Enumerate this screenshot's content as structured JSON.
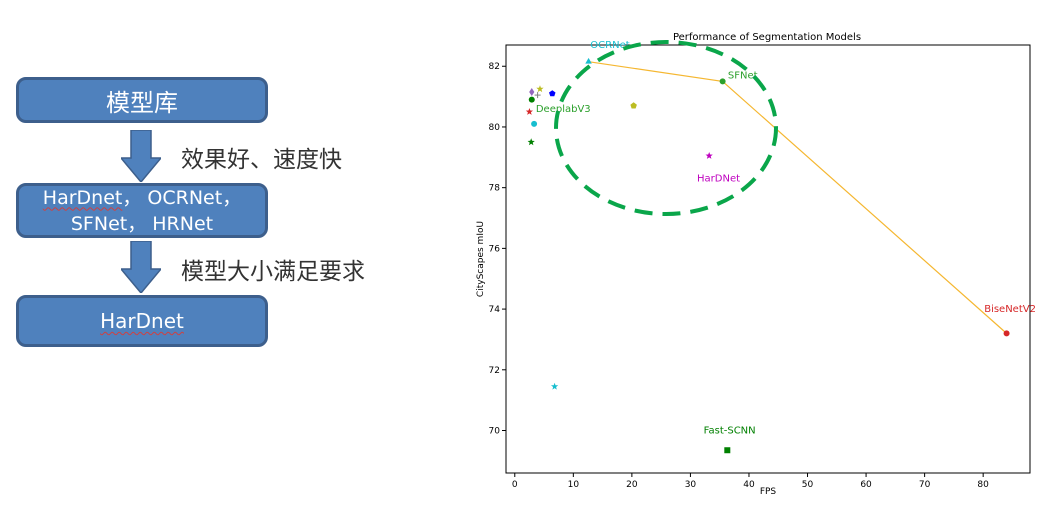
{
  "flow": {
    "box1": "模型库",
    "step1": "效果好、速度快",
    "box2_line1_a": "HarDnet",
    "box2_line1_b": "， ",
    "box2_line1_c": "OCRNet",
    "box2_line1_d": "，",
    "box2_line2_a": "SFNet",
    "box2_line2_b": "， ",
    "box2_line2_c": "HRNet",
    "step2": "模型大小满足要求",
    "box3": "HarDnet"
  },
  "colors": {
    "box_fill": "#4f81bd",
    "arrow_fill": "#4f81bd",
    "highlight_ellipse": "#0aa64a",
    "pareto_line": "#f5b731"
  },
  "chart_data": {
    "type": "scatter",
    "title": "Performance of Segmentation Models",
    "xlabel": "FPS",
    "ylabel": "CityScapes mIoU",
    "xlim": [
      -1.5,
      88
    ],
    "ylim": [
      68.6,
      82.7
    ],
    "xticks": [
      0,
      10,
      20,
      30,
      40,
      50,
      60,
      70,
      80
    ],
    "yticks": [
      70,
      72,
      74,
      76,
      78,
      80,
      82
    ],
    "grid": false,
    "points": [
      {
        "x": 12.6,
        "y": 82.15,
        "color": "#17becf",
        "marker": "triangle"
      },
      {
        "x": 35.5,
        "y": 81.5,
        "color": "#2ca02c",
        "marker": "circle"
      },
      {
        "x": 84,
        "y": 73.2,
        "color": "#d62728",
        "marker": "circle"
      },
      {
        "x": 33.2,
        "y": 79.05,
        "color": "#bf00bf",
        "marker": "star"
      },
      {
        "x": 36.3,
        "y": 69.35,
        "color": "#008000",
        "marker": "square"
      },
      {
        "x": 2.9,
        "y": 80.9,
        "color": "#008000",
        "marker": "circle"
      },
      {
        "x": 6.4,
        "y": 81.1,
        "color": "#0000ff",
        "marker": "pentagon"
      },
      {
        "x": 4.3,
        "y": 81.25,
        "color": "#bcbd22",
        "marker": "star"
      },
      {
        "x": 2.9,
        "y": 81.15,
        "color": "#9467bd",
        "marker": "diamond"
      },
      {
        "x": 3.9,
        "y": 81.05,
        "color": "#7f7f7f",
        "marker": "plus"
      },
      {
        "x": 2.5,
        "y": 80.5,
        "color": "#d62728",
        "marker": "star"
      },
      {
        "x": 3.3,
        "y": 80.1,
        "color": "#17becf",
        "marker": "circle"
      },
      {
        "x": 20.3,
        "y": 80.7,
        "color": "#bcbd22",
        "marker": "pentagon"
      },
      {
        "x": 2.8,
        "y": 79.5,
        "color": "#008000",
        "marker": "star"
      },
      {
        "x": 6.8,
        "y": 71.45,
        "color": "#17becf",
        "marker": "star"
      }
    ],
    "pareto_line": [
      {
        "x": 12.6,
        "y": 82.15
      },
      {
        "x": 35.5,
        "y": 81.5
      },
      {
        "x": 84,
        "y": 73.2
      }
    ],
    "annotations": [
      {
        "text": "OCRNet",
        "x": 12.9,
        "y": 82.6,
        "color": "#17becf",
        "anchor": "start"
      },
      {
        "text": "SFNet",
        "x": 36.4,
        "y": 81.6,
        "color": "#2ca02c",
        "anchor": "start"
      },
      {
        "text": "DeeplabV3",
        "x": 3.6,
        "y": 80.5,
        "color": "#2ca02c",
        "anchor": "start"
      },
      {
        "text": "HarDNet",
        "x": 34.8,
        "y": 78.2,
        "color": "#bf00bf",
        "anchor": "middle"
      },
      {
        "text": "BiseNetV2",
        "x": 84.6,
        "y": 73.9,
        "color": "#d62728",
        "anchor": "middle"
      },
      {
        "text": "Fast-SCNN",
        "x": 36.7,
        "y": 69.9,
        "color": "#008000",
        "anchor": "middle"
      }
    ]
  }
}
